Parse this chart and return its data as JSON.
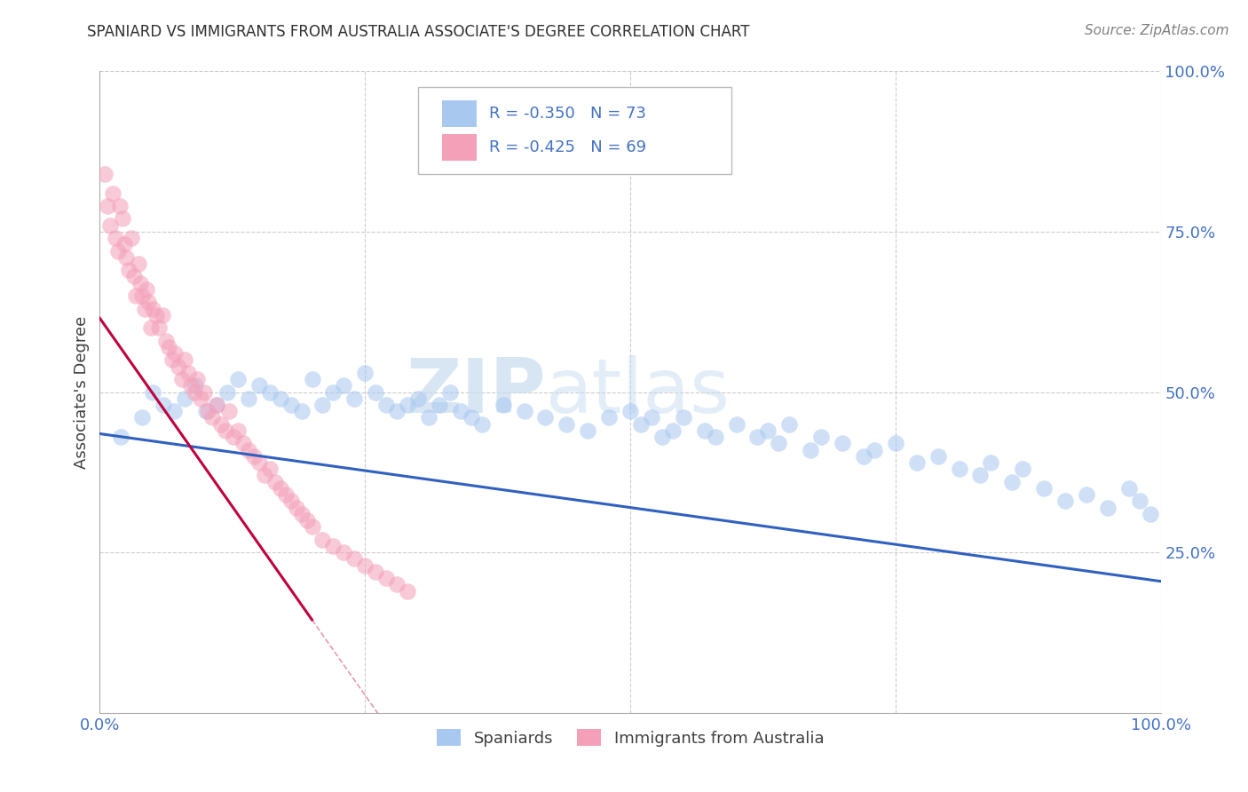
{
  "title": "SPANIARD VS IMMIGRANTS FROM AUSTRALIA ASSOCIATE'S DEGREE CORRELATION CHART",
  "source": "Source: ZipAtlas.com",
  "ylabel": "Associate's Degree",
  "legend_label1": "Spaniards",
  "legend_label2": "Immigrants from Australia",
  "legend_r1": "R = -0.350",
  "legend_n1": "N = 73",
  "legend_r2": "R = -0.425",
  "legend_n2": "N = 69",
  "r1": -0.35,
  "n1": 73,
  "r2": -0.425,
  "n2": 69,
  "xlim": [
    0.0,
    1.0
  ],
  "ylim": [
    0.0,
    1.0
  ],
  "color_blue": "#A8C8F0",
  "color_pink": "#F4A0B8",
  "color_blue_line": "#3060C0",
  "color_pink_line": "#C0003C",
  "watermark_zip": "ZIP",
  "watermark_atlas": "atlas",
  "background_color": "#FFFFFF",
  "grid_color": "#CCCCCC",
  "title_color": "#404040",
  "legend_text_color": "#4472C4",
  "source_color": "#808080",
  "blue_scatter_x": [
    0.02,
    0.04,
    0.05,
    0.06,
    0.07,
    0.08,
    0.09,
    0.1,
    0.11,
    0.12,
    0.13,
    0.14,
    0.15,
    0.16,
    0.17,
    0.18,
    0.19,
    0.2,
    0.21,
    0.22,
    0.23,
    0.24,
    0.25,
    0.26,
    0.27,
    0.28,
    0.29,
    0.3,
    0.31,
    0.32,
    0.33,
    0.34,
    0.35,
    0.36,
    0.38,
    0.4,
    0.42,
    0.44,
    0.46,
    0.48,
    0.5,
    0.51,
    0.52,
    0.53,
    0.54,
    0.55,
    0.57,
    0.58,
    0.6,
    0.62,
    0.63,
    0.64,
    0.65,
    0.67,
    0.68,
    0.7,
    0.72,
    0.73,
    0.75,
    0.77,
    0.79,
    0.81,
    0.83,
    0.84,
    0.86,
    0.87,
    0.89,
    0.91,
    0.93,
    0.95,
    0.97,
    0.98,
    0.99
  ],
  "blue_scatter_y": [
    0.43,
    0.46,
    0.5,
    0.48,
    0.47,
    0.49,
    0.51,
    0.47,
    0.48,
    0.5,
    0.52,
    0.49,
    0.51,
    0.5,
    0.49,
    0.48,
    0.47,
    0.52,
    0.48,
    0.5,
    0.51,
    0.49,
    0.53,
    0.5,
    0.48,
    0.47,
    0.48,
    0.49,
    0.46,
    0.48,
    0.5,
    0.47,
    0.46,
    0.45,
    0.48,
    0.47,
    0.46,
    0.45,
    0.44,
    0.46,
    0.47,
    0.45,
    0.46,
    0.43,
    0.44,
    0.46,
    0.44,
    0.43,
    0.45,
    0.43,
    0.44,
    0.42,
    0.45,
    0.41,
    0.43,
    0.42,
    0.4,
    0.41,
    0.42,
    0.39,
    0.4,
    0.38,
    0.37,
    0.39,
    0.36,
    0.38,
    0.35,
    0.33,
    0.34,
    0.32,
    0.35,
    0.33,
    0.31
  ],
  "pink_scatter_x": [
    0.005,
    0.007,
    0.01,
    0.012,
    0.015,
    0.017,
    0.019,
    0.021,
    0.023,
    0.025,
    0.027,
    0.03,
    0.032,
    0.034,
    0.036,
    0.038,
    0.04,
    0.042,
    0.044,
    0.046,
    0.048,
    0.05,
    0.053,
    0.056,
    0.059,
    0.062,
    0.065,
    0.068,
    0.071,
    0.074,
    0.077,
    0.08,
    0.083,
    0.086,
    0.089,
    0.092,
    0.095,
    0.098,
    0.102,
    0.106,
    0.11,
    0.114,
    0.118,
    0.122,
    0.126,
    0.13,
    0.135,
    0.14,
    0.145,
    0.15,
    0.155,
    0.16,
    0.165,
    0.17,
    0.175,
    0.18,
    0.185,
    0.19,
    0.195,
    0.2,
    0.21,
    0.22,
    0.23,
    0.24,
    0.25,
    0.26,
    0.27,
    0.28,
    0.29
  ],
  "pink_scatter_y": [
    0.84,
    0.79,
    0.76,
    0.81,
    0.74,
    0.72,
    0.79,
    0.77,
    0.73,
    0.71,
    0.69,
    0.74,
    0.68,
    0.65,
    0.7,
    0.67,
    0.65,
    0.63,
    0.66,
    0.64,
    0.6,
    0.63,
    0.62,
    0.6,
    0.62,
    0.58,
    0.57,
    0.55,
    0.56,
    0.54,
    0.52,
    0.55,
    0.53,
    0.51,
    0.5,
    0.52,
    0.49,
    0.5,
    0.47,
    0.46,
    0.48,
    0.45,
    0.44,
    0.47,
    0.43,
    0.44,
    0.42,
    0.41,
    0.4,
    0.39,
    0.37,
    0.38,
    0.36,
    0.35,
    0.34,
    0.33,
    0.32,
    0.31,
    0.3,
    0.29,
    0.27,
    0.26,
    0.25,
    0.24,
    0.23,
    0.22,
    0.21,
    0.2,
    0.19
  ],
  "blue_line_x0": 0.0,
  "blue_line_x1": 1.0,
  "blue_line_y0": 0.435,
  "blue_line_y1": 0.205,
  "pink_line_x0": 0.0,
  "pink_line_x1": 0.2,
  "pink_line_y0": 0.615,
  "pink_line_y1": 0.145
}
